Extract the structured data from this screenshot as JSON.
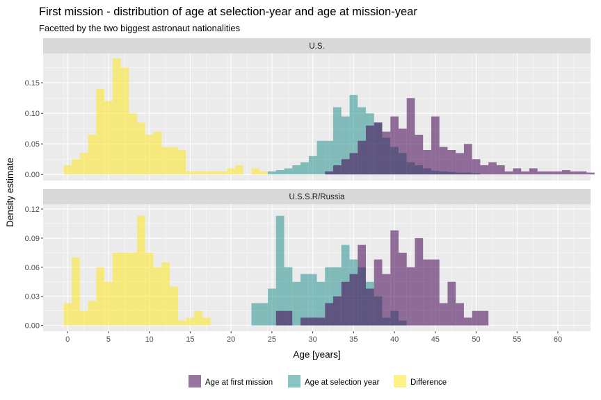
{
  "colors": {
    "first_mission": "#440154",
    "selection_year": "#21908C",
    "difference": "#FDE725",
    "panel_bg": "#EBEBEB",
    "strip_bg": "#D9D9D9",
    "grid": "#FFFFFF"
  },
  "chart_data": {
    "type": "bar",
    "title": "First mission - distribution of age at selection-year and age at mission-year",
    "subtitle": "Facetted by the two biggest astronaut nationalities",
    "xlabel": "Age [years]",
    "ylabel": "Density estimate",
    "xlim": [
      -3,
      64
    ],
    "x_ticks": [
      0,
      5,
      10,
      15,
      20,
      25,
      30,
      35,
      40,
      45,
      50,
      55,
      60
    ],
    "grid": true,
    "legend_position": "bottom",
    "bin_width": 1,
    "legend": [
      {
        "key": "first_mission",
        "label": "Age at first mission"
      },
      {
        "key": "selection_year",
        "label": "Age at selection year"
      },
      {
        "key": "difference",
        "label": "Difference"
      }
    ],
    "facets": [
      {
        "label": "U.S.",
        "ylim": [
          -0.01,
          0.198
        ],
        "y_ticks": [
          0.0,
          0.05,
          0.1,
          0.15
        ],
        "y_tick_labels": [
          "0.00",
          "0.05",
          "0.10",
          "0.15"
        ],
        "series": [
          {
            "key": "difference",
            "bins": [
              [
                0,
                0.015
              ],
              [
                1,
                0.025
              ],
              [
                2,
                0.035
              ],
              [
                3,
                0.065
              ],
              [
                4,
                0.14
              ],
              [
                5,
                0.12
              ],
              [
                6,
                0.19
              ],
              [
                7,
                0.175
              ],
              [
                8,
                0.1
              ],
              [
                9,
                0.085
              ],
              [
                10,
                0.065
              ],
              [
                11,
                0.07
              ],
              [
                12,
                0.045
              ],
              [
                13,
                0.045
              ],
              [
                14,
                0.04
              ],
              [
                15,
                0.005
              ],
              [
                16,
                0.005
              ],
              [
                17,
                0.005
              ],
              [
                18,
                0.005
              ],
              [
                19,
                0.005
              ],
              [
                20,
                0.01
              ],
              [
                21,
                0.015
              ],
              [
                23,
                0.01
              ],
              [
                24,
                0.005
              ]
            ]
          },
          {
            "key": "selection_year",
            "bins": [
              [
                25,
                0.005
              ],
              [
                26,
                0.007
              ],
              [
                27,
                0.01
              ],
              [
                28,
                0.015
              ],
              [
                29,
                0.02
              ],
              [
                30,
                0.03
              ],
              [
                31,
                0.055
              ],
              [
                32,
                0.055
              ],
              [
                33,
                0.11
              ],
              [
                34,
                0.095
              ],
              [
                35,
                0.13
              ],
              [
                36,
                0.11
              ],
              [
                37,
                0.1
              ],
              [
                38,
                0.085
              ],
              [
                39,
                0.06
              ],
              [
                40,
                0.045
              ],
              [
                41,
                0.035
              ],
              [
                42,
                0.02
              ],
              [
                43,
                0.015
              ],
              [
                44,
                0.01
              ],
              [
                45,
                0.006
              ],
              [
                46,
                0.005
              ],
              [
                47,
                0.004
              ],
              [
                48,
                0.003
              ],
              [
                49,
                0.003
              ],
              [
                50,
                0.002
              ]
            ]
          },
          {
            "key": "first_mission",
            "bins": [
              [
                32,
                0.005
              ],
              [
                33,
                0.015
              ],
              [
                34,
                0.025
              ],
              [
                35,
                0.035
              ],
              [
                36,
                0.055
              ],
              [
                37,
                0.08
              ],
              [
                38,
                0.085
              ],
              [
                39,
                0.07
              ],
              [
                40,
                0.095
              ],
              [
                41,
                0.075
              ],
              [
                42,
                0.125
              ],
              [
                43,
                0.065
              ],
              [
                44,
                0.04
              ],
              [
                45,
                0.095
              ],
              [
                46,
                0.045
              ],
              [
                47,
                0.04
              ],
              [
                48,
                0.035
              ],
              [
                49,
                0.05
              ],
              [
                50,
                0.025
              ],
              [
                51,
                0.015
              ],
              [
                52,
                0.02
              ],
              [
                53,
                0.015
              ],
              [
                54,
                0.005
              ],
              [
                55,
                0.01
              ],
              [
                56,
                0.005
              ],
              [
                57,
                0.01
              ],
              [
                58,
                0.005
              ],
              [
                59,
                0.005
              ],
              [
                60,
                0.005
              ],
              [
                61,
                0.007
              ],
              [
                62,
                0.005
              ],
              [
                63,
                0.005
              ],
              [
                64,
                0.003
              ]
            ]
          }
        ]
      },
      {
        "label": "U.S.S.R/Russia",
        "ylim": [
          -0.006,
          0.125
        ],
        "y_ticks": [
          0.0,
          0.03,
          0.06,
          0.09,
          0.12
        ],
        "y_tick_labels": [
          "0.00",
          "0.03",
          "0.06",
          "0.09",
          "0.12"
        ],
        "series": [
          {
            "key": "difference",
            "bins": [
              [
                0,
                0.023
              ],
              [
                1,
                0.07
              ],
              [
                2,
                0.015
              ],
              [
                3,
                0.025
              ],
              [
                4,
                0.06
              ],
              [
                5,
                0.045
              ],
              [
                6,
                0.075
              ],
              [
                7,
                0.075
              ],
              [
                8,
                0.075
              ],
              [
                9,
                0.113
              ],
              [
                10,
                0.075
              ],
              [
                11,
                0.06
              ],
              [
                12,
                0.065
              ],
              [
                13,
                0.04
              ],
              [
                14,
                0.005
              ],
              [
                15,
                0.008
              ],
              [
                16,
                0.015
              ],
              [
                17,
                0.008
              ]
            ]
          },
          {
            "key": "selection_year",
            "bins": [
              [
                23,
                0.023
              ],
              [
                24,
                0.023
              ],
              [
                25,
                0.038
              ],
              [
                26,
                0.113
              ],
              [
                27,
                0.06
              ],
              [
                28,
                0.045
              ],
              [
                29,
                0.053
              ],
              [
                30,
                0.053
              ],
              [
                31,
                0.045
              ],
              [
                32,
                0.06
              ],
              [
                33,
                0.06
              ],
              [
                34,
                0.083
              ],
              [
                35,
                0.068
              ],
              [
                36,
                0.06
              ],
              [
                37,
                0.045
              ],
              [
                38,
                0.03
              ],
              [
                39,
                0.008
              ],
              [
                40,
                0.015
              ],
              [
                41,
                0.005
              ]
            ]
          },
          {
            "key": "first_mission",
            "bins": [
              [
                26,
                0.015
              ],
              [
                27,
                0.015
              ],
              [
                29,
                0.008
              ],
              [
                30,
                0.008
              ],
              [
                31,
                0.008
              ],
              [
                32,
                0.023
              ],
              [
                33,
                0.03
              ],
              [
                34,
                0.045
              ],
              [
                35,
                0.053
              ],
              [
                36,
                0.083
              ],
              [
                37,
                0.038
              ],
              [
                38,
                0.068
              ],
              [
                39,
                0.053
              ],
              [
                40,
                0.098
              ],
              [
                41,
                0.075
              ],
              [
                42,
                0.06
              ],
              [
                43,
                0.09
              ],
              [
                44,
                0.068
              ],
              [
                45,
                0.068
              ],
              [
                46,
                0.023
              ],
              [
                47,
                0.045
              ],
              [
                48,
                0.023
              ],
              [
                49,
                0.008
              ],
              [
                50,
                0.015
              ],
              [
                51,
                0.015
              ]
            ]
          }
        ]
      }
    ]
  }
}
